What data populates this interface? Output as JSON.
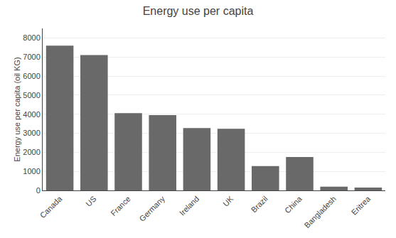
{
  "chart_data": {
    "type": "bar",
    "title": "Energy use per capita",
    "ylabel": "Energy use per capita (oil KG)",
    "categories": [
      "Canada",
      "US",
      "France",
      "Germany",
      "Ireland",
      "UK",
      "Brazil",
      "China",
      "Bangladesh",
      "Eritrea"
    ],
    "values": [
      7600,
      7100,
      4050,
      3950,
      3270,
      3230,
      1280,
      1750,
      200,
      150
    ],
    "color": "#696969",
    "ylim": [
      0,
      8500
    ],
    "yticks": [
      0,
      1000,
      2000,
      3000,
      4000,
      5000,
      6000,
      7000,
      8000
    ],
    "grid": true
  }
}
